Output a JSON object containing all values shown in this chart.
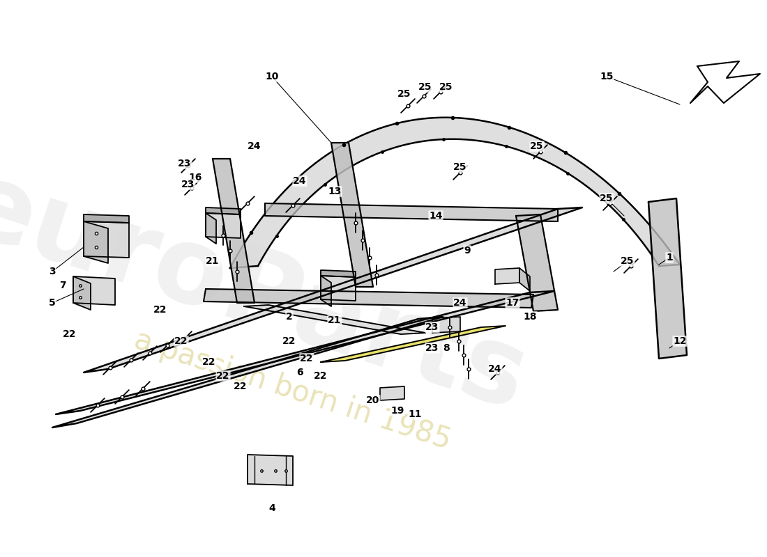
{
  "bg": "#ffffff",
  "lc": "#000000",
  "fill_light": "#d8d8d8",
  "fill_mid": "#c0c0c0",
  "fill_dark": "#a8a8a8",
  "fill_yellow": "#e8e060",
  "wm1": "euroParts",
  "wm2": "a passion born in 1985",
  "label_fs": 10,
  "labels": [
    [
      "1",
      960,
      370
    ],
    [
      "2",
      415,
      455
    ],
    [
      "3",
      75,
      390
    ],
    [
      "4",
      390,
      730
    ],
    [
      "5",
      75,
      435
    ],
    [
      "6",
      430,
      535
    ],
    [
      "7",
      90,
      410
    ],
    [
      "8",
      640,
      500
    ],
    [
      "9",
      670,
      360
    ],
    [
      "10",
      390,
      110
    ],
    [
      "11",
      595,
      595
    ],
    [
      "12",
      975,
      490
    ],
    [
      "13",
      480,
      275
    ],
    [
      "14",
      625,
      310
    ],
    [
      "15",
      870,
      110
    ],
    [
      "16",
      280,
      255
    ],
    [
      "17",
      735,
      435
    ],
    [
      "18",
      760,
      455
    ],
    [
      "19",
      570,
      590
    ],
    [
      "20",
      535,
      575
    ],
    [
      "21",
      305,
      375
    ],
    [
      "21",
      480,
      460
    ],
    [
      "22",
      100,
      480
    ],
    [
      "22",
      230,
      445
    ],
    [
      "22",
      260,
      490
    ],
    [
      "22",
      300,
      520
    ],
    [
      "22",
      320,
      540
    ],
    [
      "22",
      345,
      555
    ],
    [
      "22",
      415,
      490
    ],
    [
      "22",
      440,
      515
    ],
    [
      "22",
      460,
      540
    ],
    [
      "23",
      265,
      235
    ],
    [
      "23",
      270,
      265
    ],
    [
      "23",
      620,
      470
    ],
    [
      "23",
      620,
      500
    ],
    [
      "24",
      365,
      210
    ],
    [
      "24",
      430,
      260
    ],
    [
      "24",
      660,
      435
    ],
    [
      "24",
      710,
      530
    ],
    [
      "25",
      580,
      135
    ],
    [
      "25",
      610,
      125
    ],
    [
      "25",
      640,
      125
    ],
    [
      "25",
      660,
      240
    ],
    [
      "25",
      770,
      210
    ],
    [
      "25",
      870,
      285
    ],
    [
      "25",
      900,
      375
    ]
  ]
}
